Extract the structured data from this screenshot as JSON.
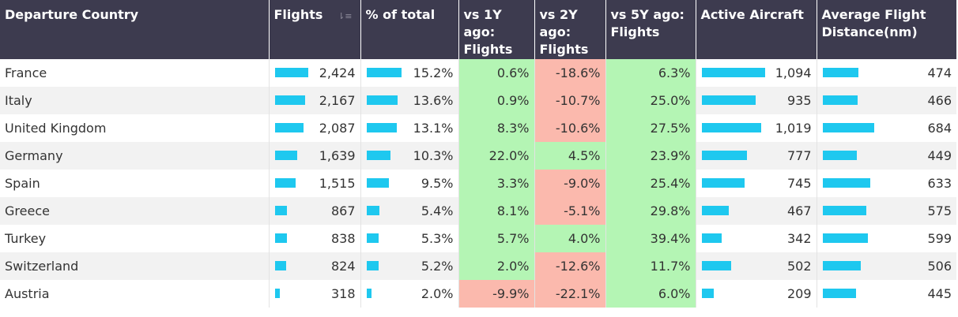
{
  "headers": {
    "country": "Departure Country",
    "flights": "Flights",
    "pct_total": "% of total",
    "vs1y": "vs 1Y ago: Flights",
    "vs2y": "vs 2Y ago: Flights",
    "vs5y": "vs 5Y ago: Flights",
    "aircraft": "Active Aircraft",
    "distance": "Average Flight Distance(nm)"
  },
  "sort_icon": "sort-descending-icon",
  "colors": {
    "bar": "#1ec8ef",
    "positive": "#b4f5b4",
    "negative": "#fbb9ad",
    "header": "#3d3b4f"
  },
  "rows": [
    {
      "country": "France",
      "flights": "2,424",
      "flights_val": 2424,
      "pct": "15.2%",
      "pct_val": 15.2,
      "vs1y": "0.6%",
      "vs1y_val": 0.6,
      "vs2y": "-18.6%",
      "vs2y_val": -18.6,
      "vs5y": "6.3%",
      "vs5y_val": 6.3,
      "aircraft": "1,094",
      "aircraft_val": 1094,
      "distance": "474",
      "distance_val": 474
    },
    {
      "country": "Italy",
      "flights": "2,167",
      "flights_val": 2167,
      "pct": "13.6%",
      "pct_val": 13.6,
      "vs1y": "0.9%",
      "vs1y_val": 0.9,
      "vs2y": "-10.7%",
      "vs2y_val": -10.7,
      "vs5y": "25.0%",
      "vs5y_val": 25.0,
      "aircraft": "935",
      "aircraft_val": 935,
      "distance": "466",
      "distance_val": 466
    },
    {
      "country": "United Kingdom",
      "flights": "2,087",
      "flights_val": 2087,
      "pct": "13.1%",
      "pct_val": 13.1,
      "vs1y": "8.3%",
      "vs1y_val": 8.3,
      "vs2y": "-10.6%",
      "vs2y_val": -10.6,
      "vs5y": "27.5%",
      "vs5y_val": 27.5,
      "aircraft": "1,019",
      "aircraft_val": 1019,
      "distance": "684",
      "distance_val": 684
    },
    {
      "country": "Germany",
      "flights": "1,639",
      "flights_val": 1639,
      "pct": "10.3%",
      "pct_val": 10.3,
      "vs1y": "22.0%",
      "vs1y_val": 22.0,
      "vs2y": "4.5%",
      "vs2y_val": 4.5,
      "vs5y": "23.9%",
      "vs5y_val": 23.9,
      "aircraft": "777",
      "aircraft_val": 777,
      "distance": "449",
      "distance_val": 449
    },
    {
      "country": "Spain",
      "flights": "1,515",
      "flights_val": 1515,
      "pct": "9.5%",
      "pct_val": 9.5,
      "vs1y": "3.3%",
      "vs1y_val": 3.3,
      "vs2y": "-9.0%",
      "vs2y_val": -9.0,
      "vs5y": "25.4%",
      "vs5y_val": 25.4,
      "aircraft": "745",
      "aircraft_val": 745,
      "distance": "633",
      "distance_val": 633
    },
    {
      "country": "Greece",
      "flights": "867",
      "flights_val": 867,
      "pct": "5.4%",
      "pct_val": 5.4,
      "vs1y": "8.1%",
      "vs1y_val": 8.1,
      "vs2y": "-5.1%",
      "vs2y_val": -5.1,
      "vs5y": "29.8%",
      "vs5y_val": 29.8,
      "aircraft": "467",
      "aircraft_val": 467,
      "distance": "575",
      "distance_val": 575
    },
    {
      "country": "Turkey",
      "flights": "838",
      "flights_val": 838,
      "pct": "5.3%",
      "pct_val": 5.3,
      "vs1y": "5.7%",
      "vs1y_val": 5.7,
      "vs2y": "4.0%",
      "vs2y_val": 4.0,
      "vs5y": "39.4%",
      "vs5y_val": 39.4,
      "aircraft": "342",
      "aircraft_val": 342,
      "distance": "599",
      "distance_val": 599
    },
    {
      "country": "Switzerland",
      "flights": "824",
      "flights_val": 824,
      "pct": "5.2%",
      "pct_val": 5.2,
      "vs1y": "2.0%",
      "vs1y_val": 2.0,
      "vs2y": "-12.6%",
      "vs2y_val": -12.6,
      "vs5y": "11.7%",
      "vs5y_val": 11.7,
      "aircraft": "502",
      "aircraft_val": 502,
      "distance": "506",
      "distance_val": 506
    },
    {
      "country": "Austria",
      "flights": "318",
      "flights_val": 318,
      "pct": "2.0%",
      "pct_val": 2.0,
      "vs1y": "-9.9%",
      "vs1y_val": -9.9,
      "vs2y": "-22.1%",
      "vs2y_val": -22.1,
      "vs5y": "6.0%",
      "vs5y_val": 6.0,
      "aircraft": "209",
      "aircraft_val": 209,
      "distance": "445",
      "distance_val": 445
    }
  ]
}
